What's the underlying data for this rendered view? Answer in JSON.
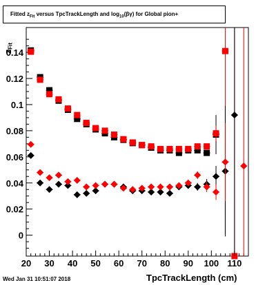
{
  "chart_data": {
    "type": "scatter",
    "title_parts": {
      "pre": "Fitted  z",
      "sub1": "Fit",
      "mid": " versus TpcTrackLength and log",
      "sub2": "10",
      "post": "(βγ) for Global pion+"
    },
    "ylabel_main": "z",
    "ylabel_sub": "Fit",
    "xlabel": "TpcTrackLength (cm)",
    "xlim": [
      20,
      116
    ],
    "ylim": [
      -0.016,
      0.159
    ],
    "x_ticks": [
      "20",
      "30",
      "40",
      "50",
      "60",
      "70",
      "80",
      "90",
      "100",
      "110"
    ],
    "x_tick_values": [
      20,
      30,
      40,
      50,
      60,
      70,
      80,
      90,
      100,
      110
    ],
    "y_ticks": [
      "0",
      "0.02",
      "0.04",
      "0.06",
      "0.08",
      "0.1",
      "0.12",
      "0.14"
    ],
    "y_tick_values": [
      0,
      0.02,
      0.04,
      0.06,
      0.08,
      0.1,
      0.12,
      0.14
    ],
    "series": [
      {
        "marker": "square",
        "color": "#000000",
        "points": [
          [
            22,
            0.1415,
            0.001
          ],
          [
            26,
            0.121,
            0.002
          ],
          [
            30,
            0.111,
            0.002
          ],
          [
            34,
            0.103,
            0.001
          ],
          [
            38,
            0.096,
            0.001
          ],
          [
            42,
            0.089,
            0.001
          ],
          [
            46,
            0.085,
            0.001
          ],
          [
            50,
            0.081,
            0.001
          ],
          [
            54,
            0.078,
            0.001
          ],
          [
            58,
            0.075,
            0.001
          ],
          [
            62,
            0.073,
            0.001
          ],
          [
            66,
            0.0705,
            0.001
          ],
          [
            70,
            0.069,
            0.001
          ],
          [
            74,
            0.067,
            0.001
          ],
          [
            78,
            0.065,
            0.001
          ],
          [
            82,
            0.065,
            0.001
          ],
          [
            86,
            0.063,
            0.002
          ],
          [
            90,
            0.065,
            0.002
          ],
          [
            94,
            0.065,
            0.002
          ],
          [
            98,
            0.063,
            0.002
          ],
          [
            102,
            0.077,
            0.015
          ]
        ]
      },
      {
        "marker": "square",
        "color": "#ff0000",
        "points": [
          [
            22,
            0.1405,
            0.001
          ],
          [
            26,
            0.119,
            0.002
          ],
          [
            30,
            0.108,
            0.002
          ],
          [
            34,
            0.104,
            0.001
          ],
          [
            38,
            0.097,
            0.001
          ],
          [
            42,
            0.092,
            0.001
          ],
          [
            46,
            0.086,
            0.001
          ],
          [
            50,
            0.082,
            0.001
          ],
          [
            54,
            0.08,
            0.001
          ],
          [
            58,
            0.077,
            0.001
          ],
          [
            62,
            0.0735,
            0.001
          ],
          [
            66,
            0.071,
            0.001
          ],
          [
            70,
            0.069,
            0.001
          ],
          [
            74,
            0.068,
            0.001
          ],
          [
            78,
            0.066,
            0.001
          ],
          [
            82,
            0.066,
            0.001
          ],
          [
            86,
            0.066,
            0.002
          ],
          [
            90,
            0.066,
            0.002
          ],
          [
            94,
            0.068,
            0.002
          ],
          [
            98,
            0.068,
            0.002
          ],
          [
            102,
            0.078,
            0.006
          ],
          [
            106,
            0.141,
            0.14
          ],
          [
            110,
            -0.016,
            0.2
          ]
        ]
      },
      {
        "marker": "diamond",
        "color": "#000000",
        "points": [
          [
            22,
            0.061,
            0.002
          ],
          [
            26,
            0.04,
            0.002
          ],
          [
            30,
            0.035,
            0.002
          ],
          [
            34,
            0.039,
            0.002
          ],
          [
            38,
            0.038,
            0.002
          ],
          [
            42,
            0.031,
            0.002
          ],
          [
            46,
            0.032,
            0.002
          ],
          [
            50,
            0.034,
            0.002
          ],
          [
            54,
            0.039,
            0.002
          ],
          [
            58,
            0.039,
            0.002
          ],
          [
            62,
            0.037,
            0.002
          ],
          [
            66,
            0.034,
            0.002
          ],
          [
            70,
            0.034,
            0.002
          ],
          [
            74,
            0.033,
            0.002
          ],
          [
            78,
            0.033,
            0.002
          ],
          [
            82,
            0.032,
            0.002
          ],
          [
            86,
            0.037,
            0.002
          ],
          [
            90,
            0.038,
            0.002
          ],
          [
            94,
            0.037,
            0.003
          ],
          [
            98,
            0.039,
            0.004
          ],
          [
            102,
            0.045,
            0.008
          ],
          [
            106,
            0.049,
            0.05
          ],
          [
            110,
            0.092,
            0.15
          ]
        ]
      },
      {
        "marker": "diamond",
        "color": "#ff0000",
        "points": [
          [
            22,
            0.0695,
            0.002
          ],
          [
            26,
            0.048,
            0.002
          ],
          [
            30,
            0.044,
            0.002
          ],
          [
            34,
            0.046,
            0.002
          ],
          [
            38,
            0.041,
            0.002
          ],
          [
            42,
            0.042,
            0.002
          ],
          [
            46,
            0.037,
            0.002
          ],
          [
            50,
            0.038,
            0.002
          ],
          [
            54,
            0.039,
            0.002
          ],
          [
            58,
            0.039,
            0.002
          ],
          [
            62,
            0.036,
            0.002
          ],
          [
            66,
            0.035,
            0.002
          ],
          [
            70,
            0.036,
            0.002
          ],
          [
            74,
            0.037,
            0.002
          ],
          [
            78,
            0.037,
            0.002
          ],
          [
            82,
            0.037,
            0.002
          ],
          [
            86,
            0.038,
            0.002
          ],
          [
            90,
            0.04,
            0.002
          ],
          [
            94,
            0.046,
            0.003
          ],
          [
            98,
            0.037,
            0.004
          ],
          [
            102,
            0.033,
            0.006
          ],
          [
            106,
            0.056,
            0.03
          ],
          [
            114,
            0.053,
            0.2
          ]
        ]
      }
    ]
  },
  "stamp": "Wed Jan 31 10:51:07 2018"
}
